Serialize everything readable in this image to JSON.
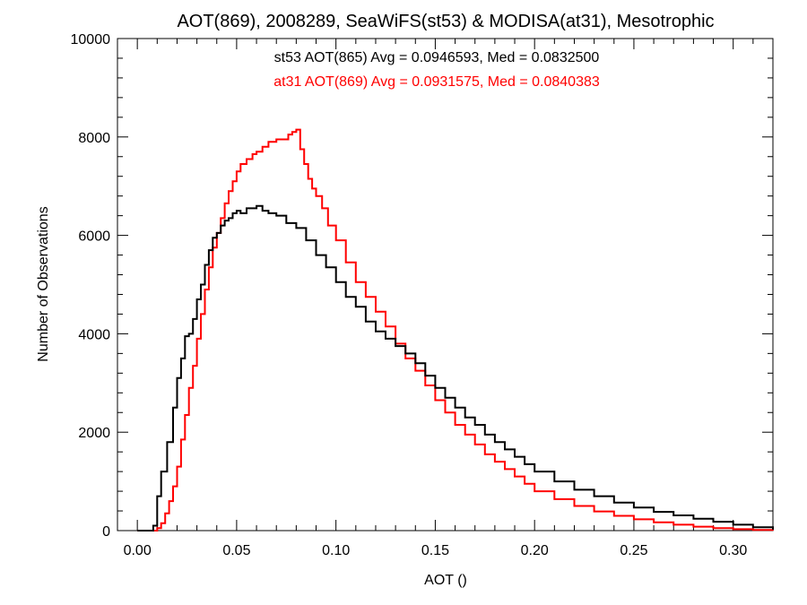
{
  "chart_data": {
    "type": "line",
    "style": "step-histogram",
    "title": "AOT(869), 2008289, SeaWiFS(st53) & MODISA(at31), Mesotrophic",
    "xlabel": "AOT ()",
    "ylabel": "Number of Observations",
    "xlim": [
      -0.01,
      0.32
    ],
    "ylim": [
      0,
      10000
    ],
    "x_ticks": [
      0.0,
      0.05,
      0.1,
      0.15,
      0.2,
      0.25,
      0.3
    ],
    "x_tick_labels": [
      "0.00",
      "0.05",
      "0.10",
      "0.15",
      "0.20",
      "0.25",
      "0.30"
    ],
    "y_ticks": [
      0,
      2000,
      4000,
      6000,
      8000,
      10000
    ],
    "y_tick_labels": [
      "0",
      "2000",
      "4000",
      "6000",
      "8000",
      "10000"
    ],
    "grid": false,
    "annotations": [
      {
        "text": "st53 AOT(865) Avg = 0.0946593, Med = 0.0832500",
        "color": "#000000"
      },
      {
        "text": "at31 AOT(869) Avg = 0.0931575, Med = 0.0840383",
        "color": "#ff0000"
      }
    ],
    "series": [
      {
        "color": "#000000",
        "x": [
          0.0,
          0.005,
          0.008,
          0.01,
          0.012,
          0.015,
          0.018,
          0.02,
          0.022,
          0.024,
          0.026,
          0.028,
          0.03,
          0.032,
          0.034,
          0.036,
          0.038,
          0.04,
          0.042,
          0.044,
          0.046,
          0.048,
          0.05,
          0.052,
          0.055,
          0.058,
          0.06,
          0.063,
          0.066,
          0.07,
          0.075,
          0.08,
          0.085,
          0.09,
          0.095,
          0.1,
          0.105,
          0.11,
          0.115,
          0.12,
          0.125,
          0.13,
          0.135,
          0.14,
          0.145,
          0.15,
          0.155,
          0.16,
          0.165,
          0.17,
          0.175,
          0.18,
          0.185,
          0.19,
          0.195,
          0.2,
          0.21,
          0.22,
          0.23,
          0.24,
          0.25,
          0.26,
          0.27,
          0.28,
          0.29,
          0.3,
          0.31,
          0.32
        ],
        "y": [
          0,
          0,
          100,
          700,
          1200,
          1800,
          2500,
          3100,
          3500,
          3950,
          4000,
          4300,
          4700,
          5000,
          5400,
          5700,
          5950,
          6050,
          6200,
          6300,
          6350,
          6450,
          6500,
          6450,
          6550,
          6550,
          6600,
          6500,
          6450,
          6400,
          6250,
          6150,
          5900,
          5600,
          5350,
          5050,
          4750,
          4550,
          4250,
          4050,
          3900,
          3750,
          3600,
          3400,
          3150,
          2900,
          2700,
          2500,
          2300,
          2150,
          1950,
          1800,
          1650,
          1500,
          1350,
          1200,
          1000,
          830,
          700,
          570,
          470,
          380,
          310,
          240,
          180,
          120,
          70,
          20
        ]
      },
      {
        "color": "#ff0000",
        "x": [
          0.0,
          0.008,
          0.01,
          0.012,
          0.014,
          0.016,
          0.018,
          0.02,
          0.022,
          0.024,
          0.026,
          0.028,
          0.03,
          0.032,
          0.034,
          0.036,
          0.038,
          0.04,
          0.042,
          0.044,
          0.046,
          0.048,
          0.05,
          0.052,
          0.055,
          0.058,
          0.06,
          0.063,
          0.066,
          0.07,
          0.073,
          0.076,
          0.078,
          0.08,
          0.082,
          0.084,
          0.086,
          0.088,
          0.09,
          0.093,
          0.096,
          0.1,
          0.105,
          0.11,
          0.115,
          0.12,
          0.125,
          0.13,
          0.135,
          0.14,
          0.145,
          0.15,
          0.155,
          0.16,
          0.165,
          0.17,
          0.175,
          0.18,
          0.185,
          0.19,
          0.195,
          0.2,
          0.21,
          0.22,
          0.23,
          0.24,
          0.25,
          0.26,
          0.27,
          0.28,
          0.29,
          0.3,
          0.31,
          0.32
        ],
        "y": [
          0,
          0,
          50,
          150,
          350,
          600,
          900,
          1300,
          1850,
          2350,
          2900,
          3350,
          3900,
          4400,
          4900,
          5350,
          5750,
          6050,
          6350,
          6650,
          6900,
          7100,
          7300,
          7450,
          7550,
          7650,
          7700,
          7800,
          7900,
          7950,
          7950,
          8050,
          8100,
          8150,
          7750,
          7450,
          7150,
          6950,
          6800,
          6550,
          6200,
          5900,
          5450,
          5050,
          4750,
          4450,
          4150,
          3800,
          3500,
          3250,
          2950,
          2650,
          2400,
          2150,
          1950,
          1750,
          1550,
          1400,
          1250,
          1100,
          950,
          800,
          640,
          500,
          390,
          300,
          230,
          170,
          120,
          80,
          50,
          30,
          15,
          5
        ]
      }
    ]
  }
}
